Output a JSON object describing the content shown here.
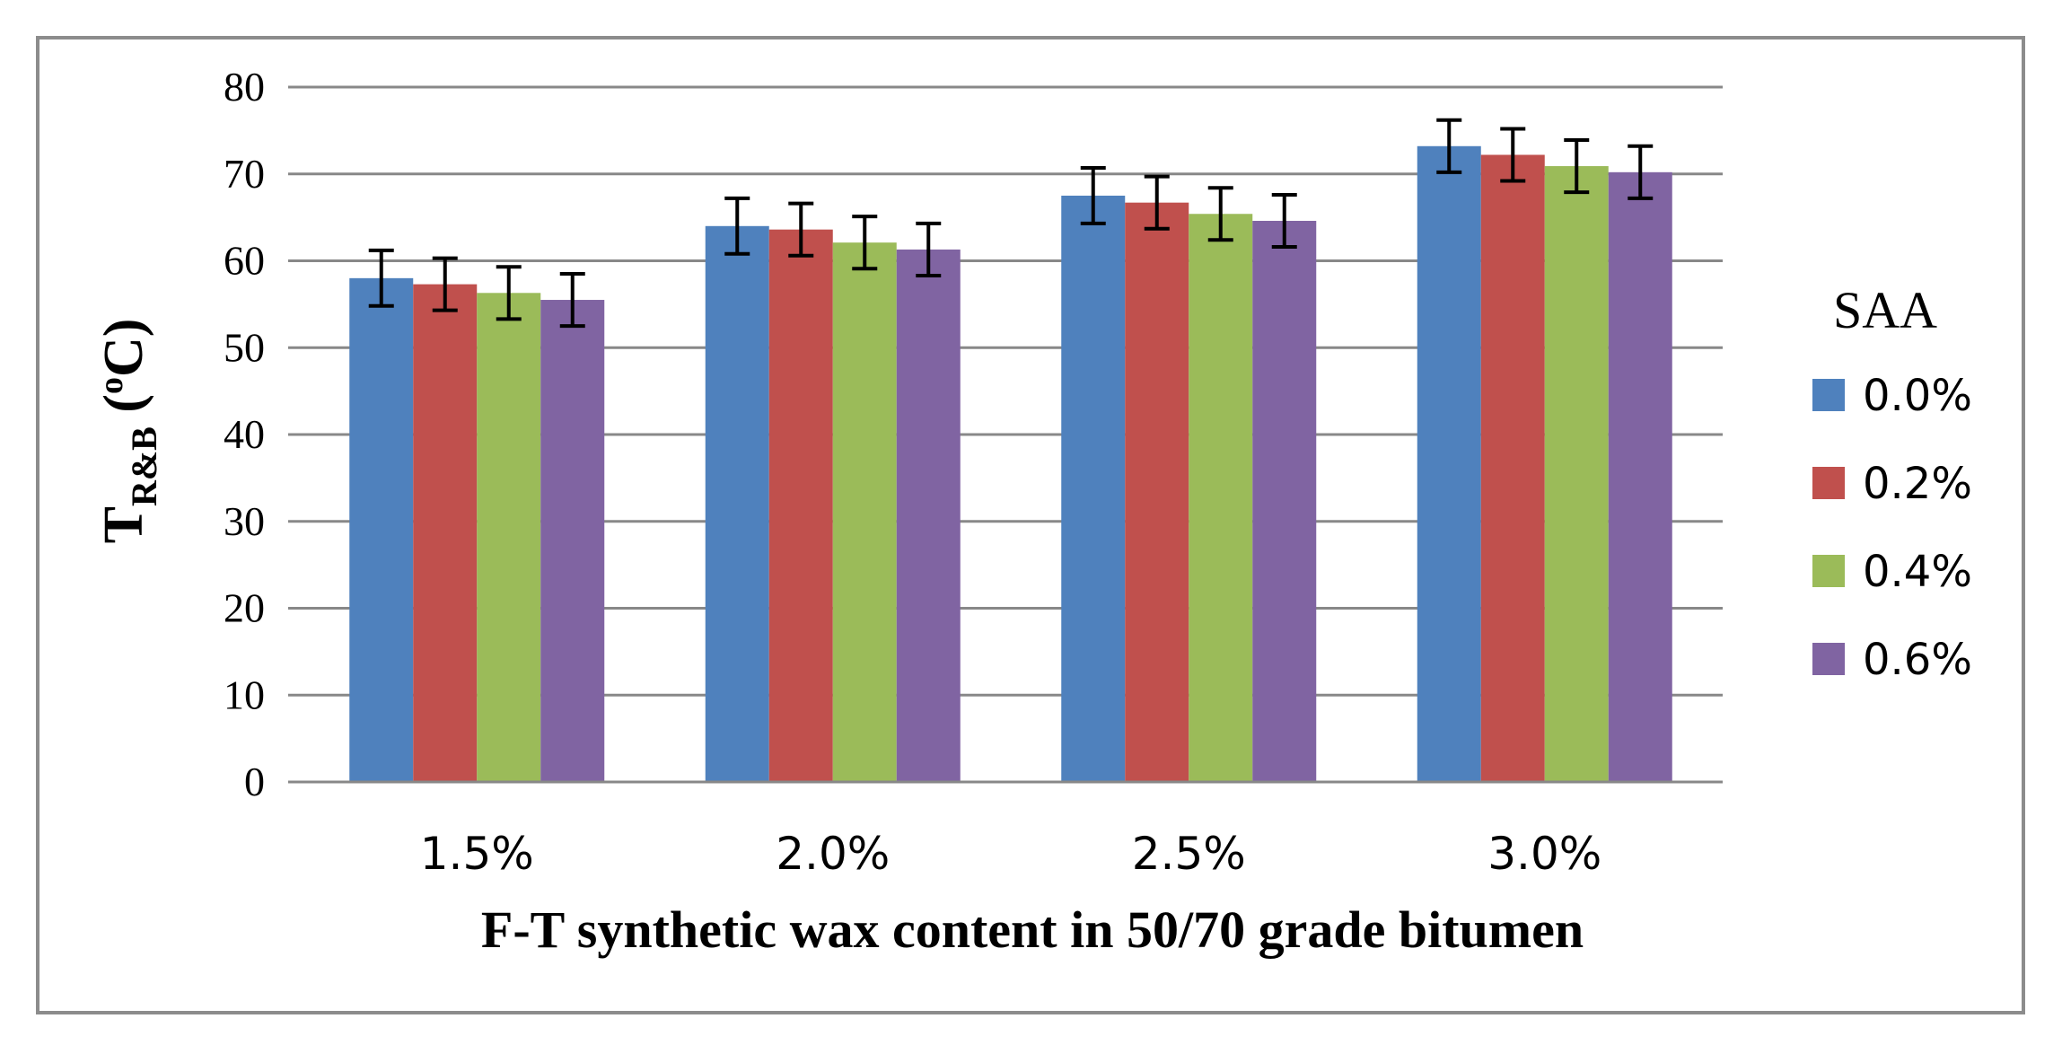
{
  "chart_data": {
    "type": "bar",
    "title": "",
    "xlabel": "F-T synthetic wax content in 50/70 grade bitumen",
    "ylabel": {
      "main": "T",
      "subscript": "R&B",
      "paren_open": " (",
      "superscript": "o",
      "unit": "C)"
    },
    "ylim": [
      0,
      80
    ],
    "yticks": [
      0,
      10,
      20,
      30,
      40,
      50,
      60,
      70,
      80
    ],
    "ytick_labels": [
      "0",
      "10",
      "20",
      "30",
      "40",
      "50",
      "60",
      "70",
      "80"
    ],
    "categories": [
      "1.5%",
      "2.0%",
      "2.5%",
      "3.0%"
    ],
    "legend_title": "SAA",
    "legend_position": "right",
    "grid": true,
    "series": [
      {
        "name": "0.0%",
        "color": "#4F81BD",
        "values": [
          58.0,
          64.0,
          67.5,
          73.2
        ],
        "errors": [
          3.2,
          3.2,
          3.2,
          3.0
        ]
      },
      {
        "name": "0.2%",
        "color": "#C0504D",
        "values": [
          57.3,
          63.6,
          66.7,
          72.2
        ],
        "errors": [
          3.0,
          3.0,
          3.0,
          3.0
        ]
      },
      {
        "name": "0.4%",
        "color": "#9BBB59",
        "values": [
          56.3,
          62.1,
          65.4,
          70.9
        ],
        "errors": [
          3.0,
          3.0,
          3.0,
          3.0
        ]
      },
      {
        "name": "0.6%",
        "color": "#8064A2",
        "values": [
          55.5,
          61.3,
          64.6,
          70.2
        ],
        "errors": [
          3.0,
          3.0,
          3.0,
          3.0
        ]
      }
    ]
  }
}
